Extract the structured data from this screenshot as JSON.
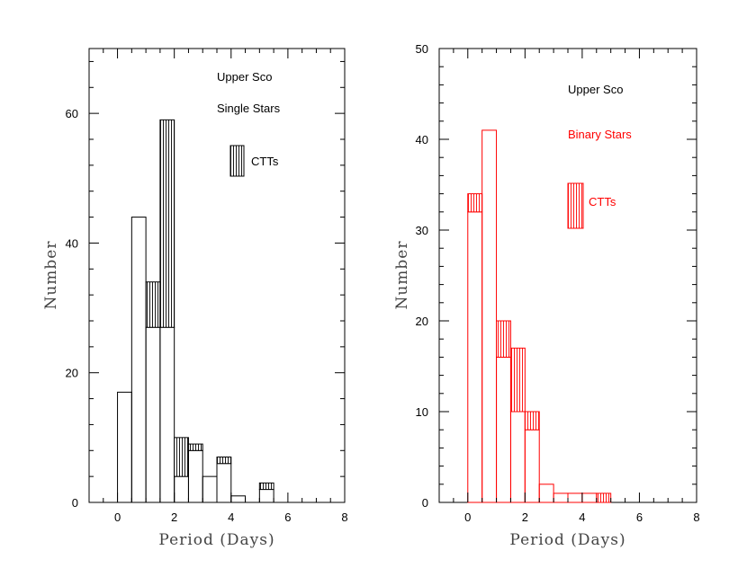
{
  "chart_data": [
    {
      "type": "bar",
      "subtype": "stacked-histogram",
      "color": "#000000",
      "xlabel": "Period (Days)",
      "ylabel": "Number",
      "xlim": [
        -1,
        8
      ],
      "ylim": [
        0,
        70
      ],
      "xticks": [
        0,
        2,
        4,
        6,
        8
      ],
      "yticks": [
        0,
        20,
        40,
        60
      ],
      "bin_width": 0.5,
      "bins": [
        {
          "x0": 0.0,
          "x1": 0.5,
          "total": 17,
          "ctt": 0
        },
        {
          "x0": 0.5,
          "x1": 1.0,
          "total": 44,
          "ctt": 0
        },
        {
          "x0": 1.0,
          "x1": 1.5,
          "total": 34,
          "ctt": 7
        },
        {
          "x0": 1.5,
          "x1": 2.0,
          "total": 59,
          "ctt": 32
        },
        {
          "x0": 2.0,
          "x1": 2.5,
          "total": 10,
          "ctt": 6
        },
        {
          "x0": 2.5,
          "x1": 3.0,
          "total": 9,
          "ctt": 1
        },
        {
          "x0": 3.0,
          "x1": 3.5,
          "total": 4,
          "ctt": 0
        },
        {
          "x0": 3.5,
          "x1": 4.0,
          "total": 7,
          "ctt": 1
        },
        {
          "x0": 4.0,
          "x1": 4.5,
          "total": 1,
          "ctt": 0
        },
        {
          "x0": 4.5,
          "x1": 5.0,
          "total": 0,
          "ctt": 0
        },
        {
          "x0": 5.0,
          "x1": 5.5,
          "total": 3,
          "ctt": 1
        }
      ],
      "annotations": [
        "Upper Sco",
        "Single Stars"
      ],
      "legend": {
        "label": "CTTs",
        "placement": "top-right"
      }
    },
    {
      "type": "bar",
      "subtype": "stacked-histogram",
      "color": "#ff0000",
      "xlabel": "Period (Days)",
      "ylabel": "Number",
      "xlim": [
        -1,
        8
      ],
      "ylim": [
        0,
        50
      ],
      "xticks": [
        0,
        2,
        4,
        6,
        8
      ],
      "yticks": [
        0,
        10,
        20,
        30,
        40,
        50
      ],
      "bin_width": 0.5,
      "bins": [
        {
          "x0": 0.0,
          "x1": 0.5,
          "total": 34,
          "ctt": 2
        },
        {
          "x0": 0.5,
          "x1": 1.0,
          "total": 41,
          "ctt": 0
        },
        {
          "x0": 1.0,
          "x1": 1.5,
          "total": 20,
          "ctt": 4
        },
        {
          "x0": 1.5,
          "x1": 2.0,
          "total": 17,
          "ctt": 7
        },
        {
          "x0": 2.0,
          "x1": 2.5,
          "total": 10,
          "ctt": 2
        },
        {
          "x0": 2.5,
          "x1": 3.0,
          "total": 2,
          "ctt": 0
        },
        {
          "x0": 3.0,
          "x1": 3.5,
          "total": 1,
          "ctt": 0
        },
        {
          "x0": 3.5,
          "x1": 4.0,
          "total": 1,
          "ctt": 0
        },
        {
          "x0": 4.0,
          "x1": 4.5,
          "total": 1,
          "ctt": 0
        },
        {
          "x0": 4.5,
          "x1": 5.0,
          "total": 1,
          "ctt": 1
        }
      ],
      "annotations": [
        "Upper Sco",
        "Binary Stars"
      ],
      "legend": {
        "label": "CTTs",
        "placement": "top-right"
      }
    }
  ]
}
